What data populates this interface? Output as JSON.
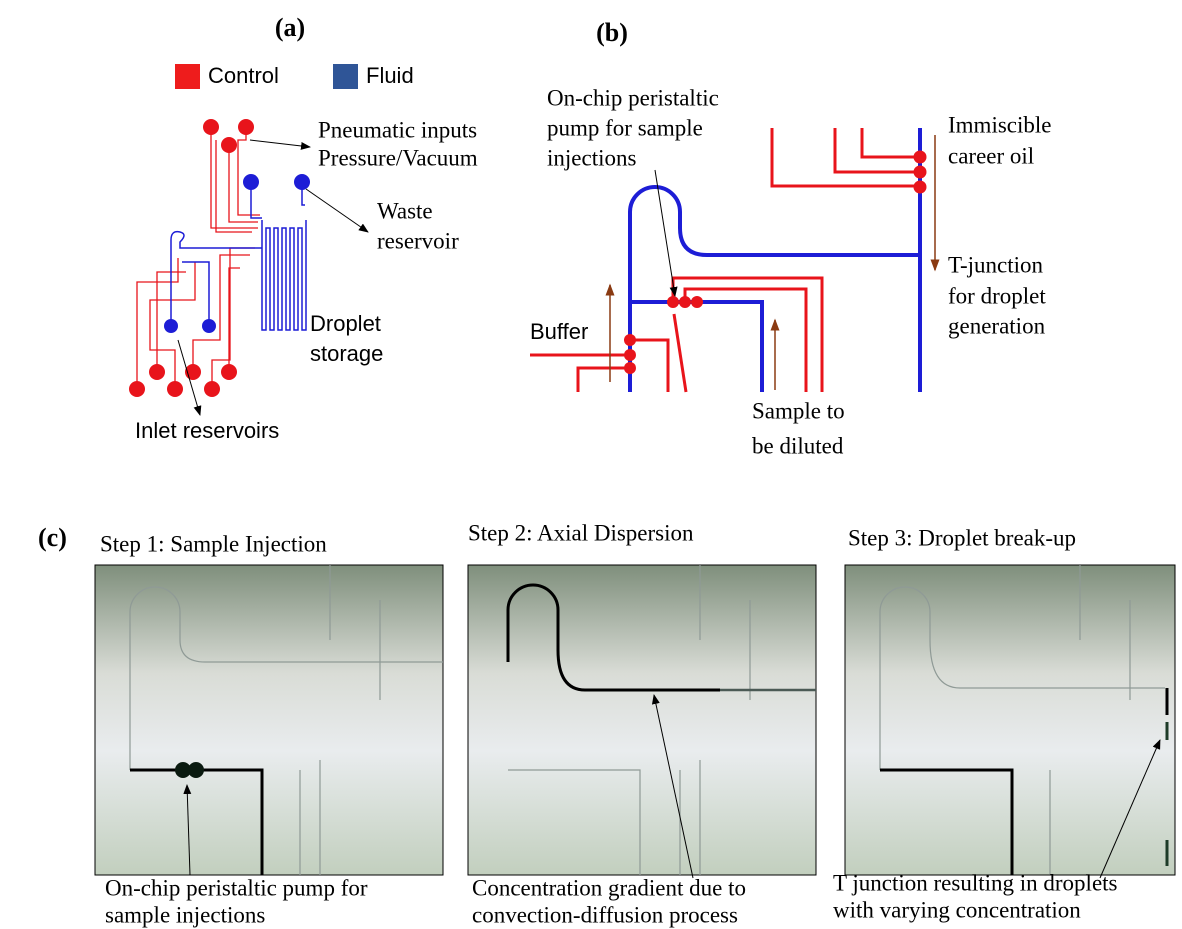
{
  "panel_a": {
    "label": "(a)",
    "legend": [
      "Control",
      "Fluid"
    ],
    "annotations": {
      "pneumatic": [
        "Pneumatic inputs",
        "Pressure/Vacuum"
      ],
      "waste": [
        "Waste",
        "reservoir"
      ],
      "droplet": [
        "Droplet",
        "storage"
      ],
      "inlet": "Inlet reservoirs"
    }
  },
  "panel_b": {
    "label": "(b)",
    "annotations": {
      "pump": [
        "On-chip peristaltic",
        "pump for sample",
        "injections"
      ],
      "oil": [
        "Immiscible",
        "career oil"
      ],
      "junction": [
        "T-junction",
        "for droplet",
        "generation"
      ],
      "buffer": "Buffer",
      "sample": [
        "Sample to",
        "be diluted"
      ]
    }
  },
  "panel_c": {
    "label": "(c)",
    "steps": [
      {
        "title": "Step 1: Sample Injection",
        "caption": [
          "On-chip peristaltic pump for",
          "sample injections"
        ]
      },
      {
        "title": "Step 2: Axial Dispersion",
        "caption": [
          "Concentration gradient due to",
          "convection-diffusion process"
        ]
      },
      {
        "title": "Step 3: Droplet break-up",
        "caption": [
          "T junction resulting in droplets",
          "with varying concentration"
        ]
      }
    ]
  }
}
